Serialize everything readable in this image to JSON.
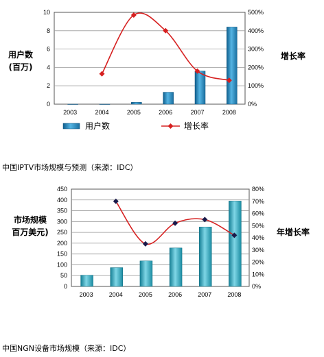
{
  "charts": [
    {
      "caption": "中国IPTV市场规模与预测（来源：IDC）",
      "chart_data": {
        "type": "bar",
        "categories": [
          "2003",
          "2004",
          "2005",
          "2006",
          "2007",
          "2008"
        ],
        "series": [
          {
            "name": "用户数",
            "type": "bar",
            "axis": "left",
            "values": [
              0,
              0,
              0.2,
              1.3,
              3.6,
              8.4
            ]
          },
          {
            "name": "增长率",
            "type": "line",
            "axis": "right",
            "values": [
              null,
              165,
              485,
              400,
              180,
              130
            ]
          }
        ],
        "ylabel_left": [
          "用户数",
          "(百万)"
        ],
        "ylabel_right": "增长率",
        "ylim_left": [
          0,
          10
        ],
        "yticks_left": [
          "0",
          "2",
          "4",
          "6",
          "8",
          "10"
        ],
        "ylim_right": [
          0,
          500
        ],
        "yticks_right": [
          "0%",
          "100%",
          "200%",
          "300%",
          "400%",
          "500%"
        ],
        "grid": true,
        "legend": "bottom",
        "colors": {
          "bar": "#2e8fc4",
          "line": "#d62020"
        }
      }
    },
    {
      "caption": "中国NGN设备市场规模（来源：IDC）",
      "chart_data": {
        "type": "bar",
        "categories": [
          "2003",
          "2004",
          "2005",
          "2006",
          "2007",
          "2008"
        ],
        "series": [
          {
            "type": "bar",
            "axis": "left",
            "values": [
              52,
              87,
              118,
              178,
              275,
              395
            ]
          },
          {
            "type": "line",
            "axis": "right",
            "values": [
              null,
              70,
              35,
              52,
              55,
              42
            ]
          }
        ],
        "ylabel_left": [
          "市场规模",
          "百万美元)"
        ],
        "ylabel_right": "年增长率",
        "ylim_left": [
          0,
          450
        ],
        "yticks_left": [
          "0",
          "50",
          "100",
          "150",
          "200",
          "250",
          "300",
          "350",
          "400",
          "450"
        ],
        "ylim_right": [
          0,
          80
        ],
        "yticks_right": [
          "0%",
          "10%",
          "20%",
          "30%",
          "40%",
          "50%",
          "60%",
          "70%",
          "80%"
        ],
        "grid": true,
        "legend": "none",
        "colors": {
          "bar": "#2aa8c0",
          "line": "#d62020",
          "marker": "#1a1a4a"
        }
      }
    }
  ]
}
